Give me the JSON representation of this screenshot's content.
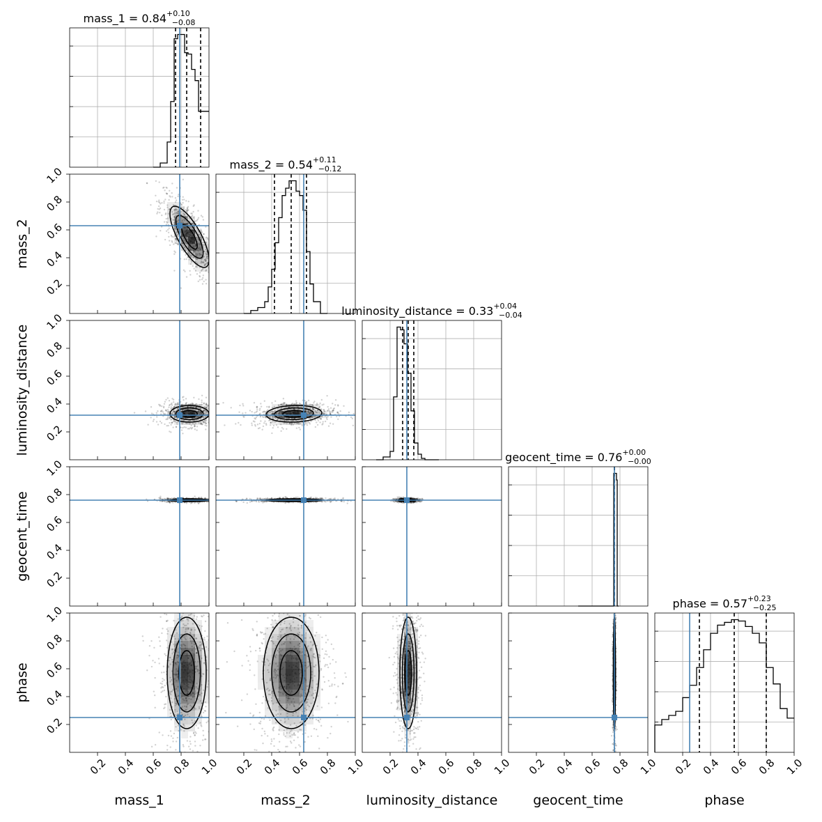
{
  "figure": {
    "type": "corner-plot"
  },
  "colors": {
    "truth": "#4682b4",
    "hist": "#000000",
    "contour": "#000000",
    "grid": "#b0b0b0",
    "density": "#000000"
  },
  "chart_data": {
    "type": "corner",
    "parameters": [
      "mass_1",
      "mass_2",
      "luminosity_distance",
      "geocent_time",
      "phase"
    ],
    "axis_labels": [
      "mass_1",
      "mass_2",
      "luminosity_distance",
      "geocent_time",
      "phase"
    ],
    "titles": [
      {
        "name": "mass_1",
        "median": "0.84",
        "plus": "+0.10",
        "minus": "−0.08"
      },
      {
        "name": "mass_2",
        "median": "0.54",
        "plus": "+0.11",
        "minus": "−0.12"
      },
      {
        "name": "luminosity_distance",
        "median": "0.33",
        "plus": "+0.04",
        "minus": "−0.04"
      },
      {
        "name": "geocent_time",
        "median": "0.76",
        "plus": "+0.00",
        "minus": "−0.00"
      },
      {
        "name": "phase",
        "median": "0.57",
        "plus": "+0.23",
        "minus": "−0.25"
      }
    ],
    "range": [
      0,
      1
    ],
    "tick_values": [
      0.2,
      0.4,
      0.6,
      0.8,
      1.0
    ],
    "tick_labels": [
      "0.2",
      "0.4",
      "0.6",
      "0.8",
      "1.0"
    ],
    "truths": [
      0.79,
      0.63,
      0.32,
      0.76,
      0.25
    ],
    "quantiles": [
      [
        0.76,
        0.84,
        0.94
      ],
      [
        0.42,
        0.54,
        0.65
      ],
      [
        0.29,
        0.33,
        0.37
      ],
      [
        0.76,
        0.76,
        0.76
      ],
      [
        0.32,
        0.57,
        0.8
      ]
    ],
    "diag_hist_edges": [
      [
        0.6,
        0.65,
        0.7,
        0.725,
        0.75,
        0.775,
        0.8,
        0.825,
        0.85,
        0.875,
        0.9,
        0.925,
        0.95,
        1.0
      ],
      [
        0.2,
        0.25,
        0.3,
        0.35,
        0.375,
        0.4,
        0.425,
        0.45,
        0.475,
        0.5,
        0.525,
        0.55,
        0.575,
        0.6,
        0.625,
        0.65,
        0.675,
        0.7,
        0.75,
        0.8
      ],
      [
        0.1,
        0.15,
        0.2,
        0.225,
        0.25,
        0.275,
        0.3,
        0.325,
        0.35,
        0.375,
        0.4,
        0.425,
        0.45,
        0.5,
        0.55
      ],
      [
        0.5,
        0.745,
        0.755,
        0.765,
        0.775,
        0.78,
        0.79
      ],
      [
        0.0,
        0.05,
        0.1,
        0.15,
        0.2,
        0.25,
        0.3,
        0.35,
        0.4,
        0.45,
        0.5,
        0.55,
        0.6,
        0.65,
        0.7,
        0.75,
        0.8,
        0.85,
        0.9,
        0.95,
        1.0
      ]
    ],
    "diag_hist_counts": [
      [
        0,
        3,
        18,
        47,
        92,
        95,
        95,
        82,
        81,
        70,
        62,
        40,
        40
      ],
      [
        0,
        2,
        4,
        8,
        18,
        30,
        48,
        65,
        80,
        85,
        90,
        90,
        83,
        80,
        70,
        42,
        20,
        8,
        0
      ],
      [
        0,
        2,
        6,
        45,
        95,
        93,
        83,
        62,
        35,
        12,
        4,
        1,
        0,
        0
      ],
      [
        0,
        0,
        100,
        100,
        95,
        0
      ],
      [
        20,
        24,
        27,
        30,
        40,
        49,
        62,
        75,
        87,
        93,
        95,
        97,
        96,
        92,
        87,
        80,
        62,
        50,
        32,
        25
      ]
    ],
    "pair_panels": [
      {
        "x": "mass_1",
        "y": "mass_2",
        "center": [
          0.86,
          0.55
        ],
        "sigma": [
          0.07,
          0.11
        ],
        "rho": -0.75
      },
      {
        "x": "mass_1",
        "y": "luminosity_distance",
        "center": [
          0.86,
          0.33
        ],
        "sigma": [
          0.07,
          0.03
        ],
        "rho": 0.0
      },
      {
        "x": "mass_2",
        "y": "luminosity_distance",
        "center": [
          0.56,
          0.33
        ],
        "sigma": [
          0.1,
          0.03
        ],
        "rho": 0.1
      },
      {
        "x": "mass_1",
        "y": "geocent_time",
        "center": [
          0.86,
          0.76
        ],
        "sigma": [
          0.07,
          0.005
        ],
        "rho": 0.0
      },
      {
        "x": "mass_2",
        "y": "geocent_time",
        "center": [
          0.56,
          0.76
        ],
        "sigma": [
          0.1,
          0.005
        ],
        "rho": 0.0
      },
      {
        "x": "luminosity_distance",
        "y": "geocent_time",
        "center": [
          0.32,
          0.76
        ],
        "sigma": [
          0.03,
          0.005
        ],
        "rho": 0.0
      },
      {
        "x": "mass_1",
        "y": "phase",
        "center": [
          0.84,
          0.57
        ],
        "sigma": [
          0.07,
          0.2
        ],
        "rho": 0.0
      },
      {
        "x": "mass_2",
        "y": "phase",
        "center": [
          0.54,
          0.57
        ],
        "sigma": [
          0.1,
          0.2
        ],
        "rho": 0.0
      },
      {
        "x": "luminosity_distance",
        "y": "phase",
        "center": [
          0.33,
          0.57
        ],
        "sigma": [
          0.03,
          0.2
        ],
        "rho": 0.0
      },
      {
        "x": "geocent_time",
        "y": "phase",
        "center": [
          0.76,
          0.57
        ],
        "sigma": [
          0.004,
          0.2
        ],
        "rho": 0.0
      }
    ],
    "grid": true
  }
}
